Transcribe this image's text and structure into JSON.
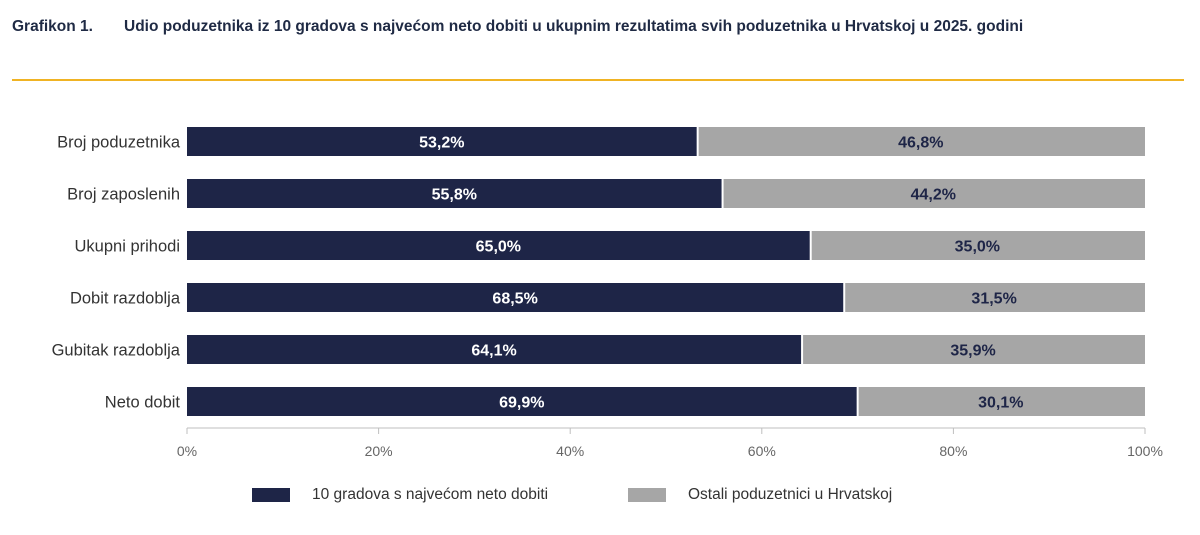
{
  "figure": {
    "label": "Grafikon 1.",
    "title": "Udio poduzetnika iz 10 gradova s najvećom neto dobiti u ukupnim rezultatima svih poduzetnika u Hrvatskoj u 2025. godini"
  },
  "colors": {
    "series_top10": "#1e2547",
    "series_other": "#a6a6a6",
    "accent_rule": "#f0b323",
    "label_light": "#ffffff",
    "label_dark": "#1e2547"
  },
  "chart_data": {
    "type": "bar",
    "orientation": "horizontal",
    "stacked": true,
    "categories": [
      "Broj poduzetnika",
      "Broj zaposlenih",
      "Ukupni prihodi",
      "Dobit razdoblja",
      "Gubitak razdoblja",
      "Neto dobit"
    ],
    "series": [
      {
        "name": "10 gradova s najvećom neto dobiti",
        "values": [
          53.2,
          55.8,
          65.0,
          68.5,
          64.1,
          69.9
        ],
        "labels": [
          "53,2%",
          "55,8%",
          "65,0%",
          "68,5%",
          "64,1%",
          "69,9%"
        ]
      },
      {
        "name": "Ostali poduzetnici u Hrvatskoj",
        "values": [
          46.8,
          44.2,
          35.0,
          31.5,
          35.9,
          30.1
        ],
        "labels": [
          "46,8%",
          "44,2%",
          "35,0%",
          "31,5%",
          "35,9%",
          "30,1%"
        ]
      }
    ],
    "xlim": [
      0,
      100
    ],
    "xticks": [
      "0%",
      "20%",
      "40%",
      "60%",
      "80%",
      "100%"
    ],
    "grid": false,
    "legend_position": "bottom"
  }
}
